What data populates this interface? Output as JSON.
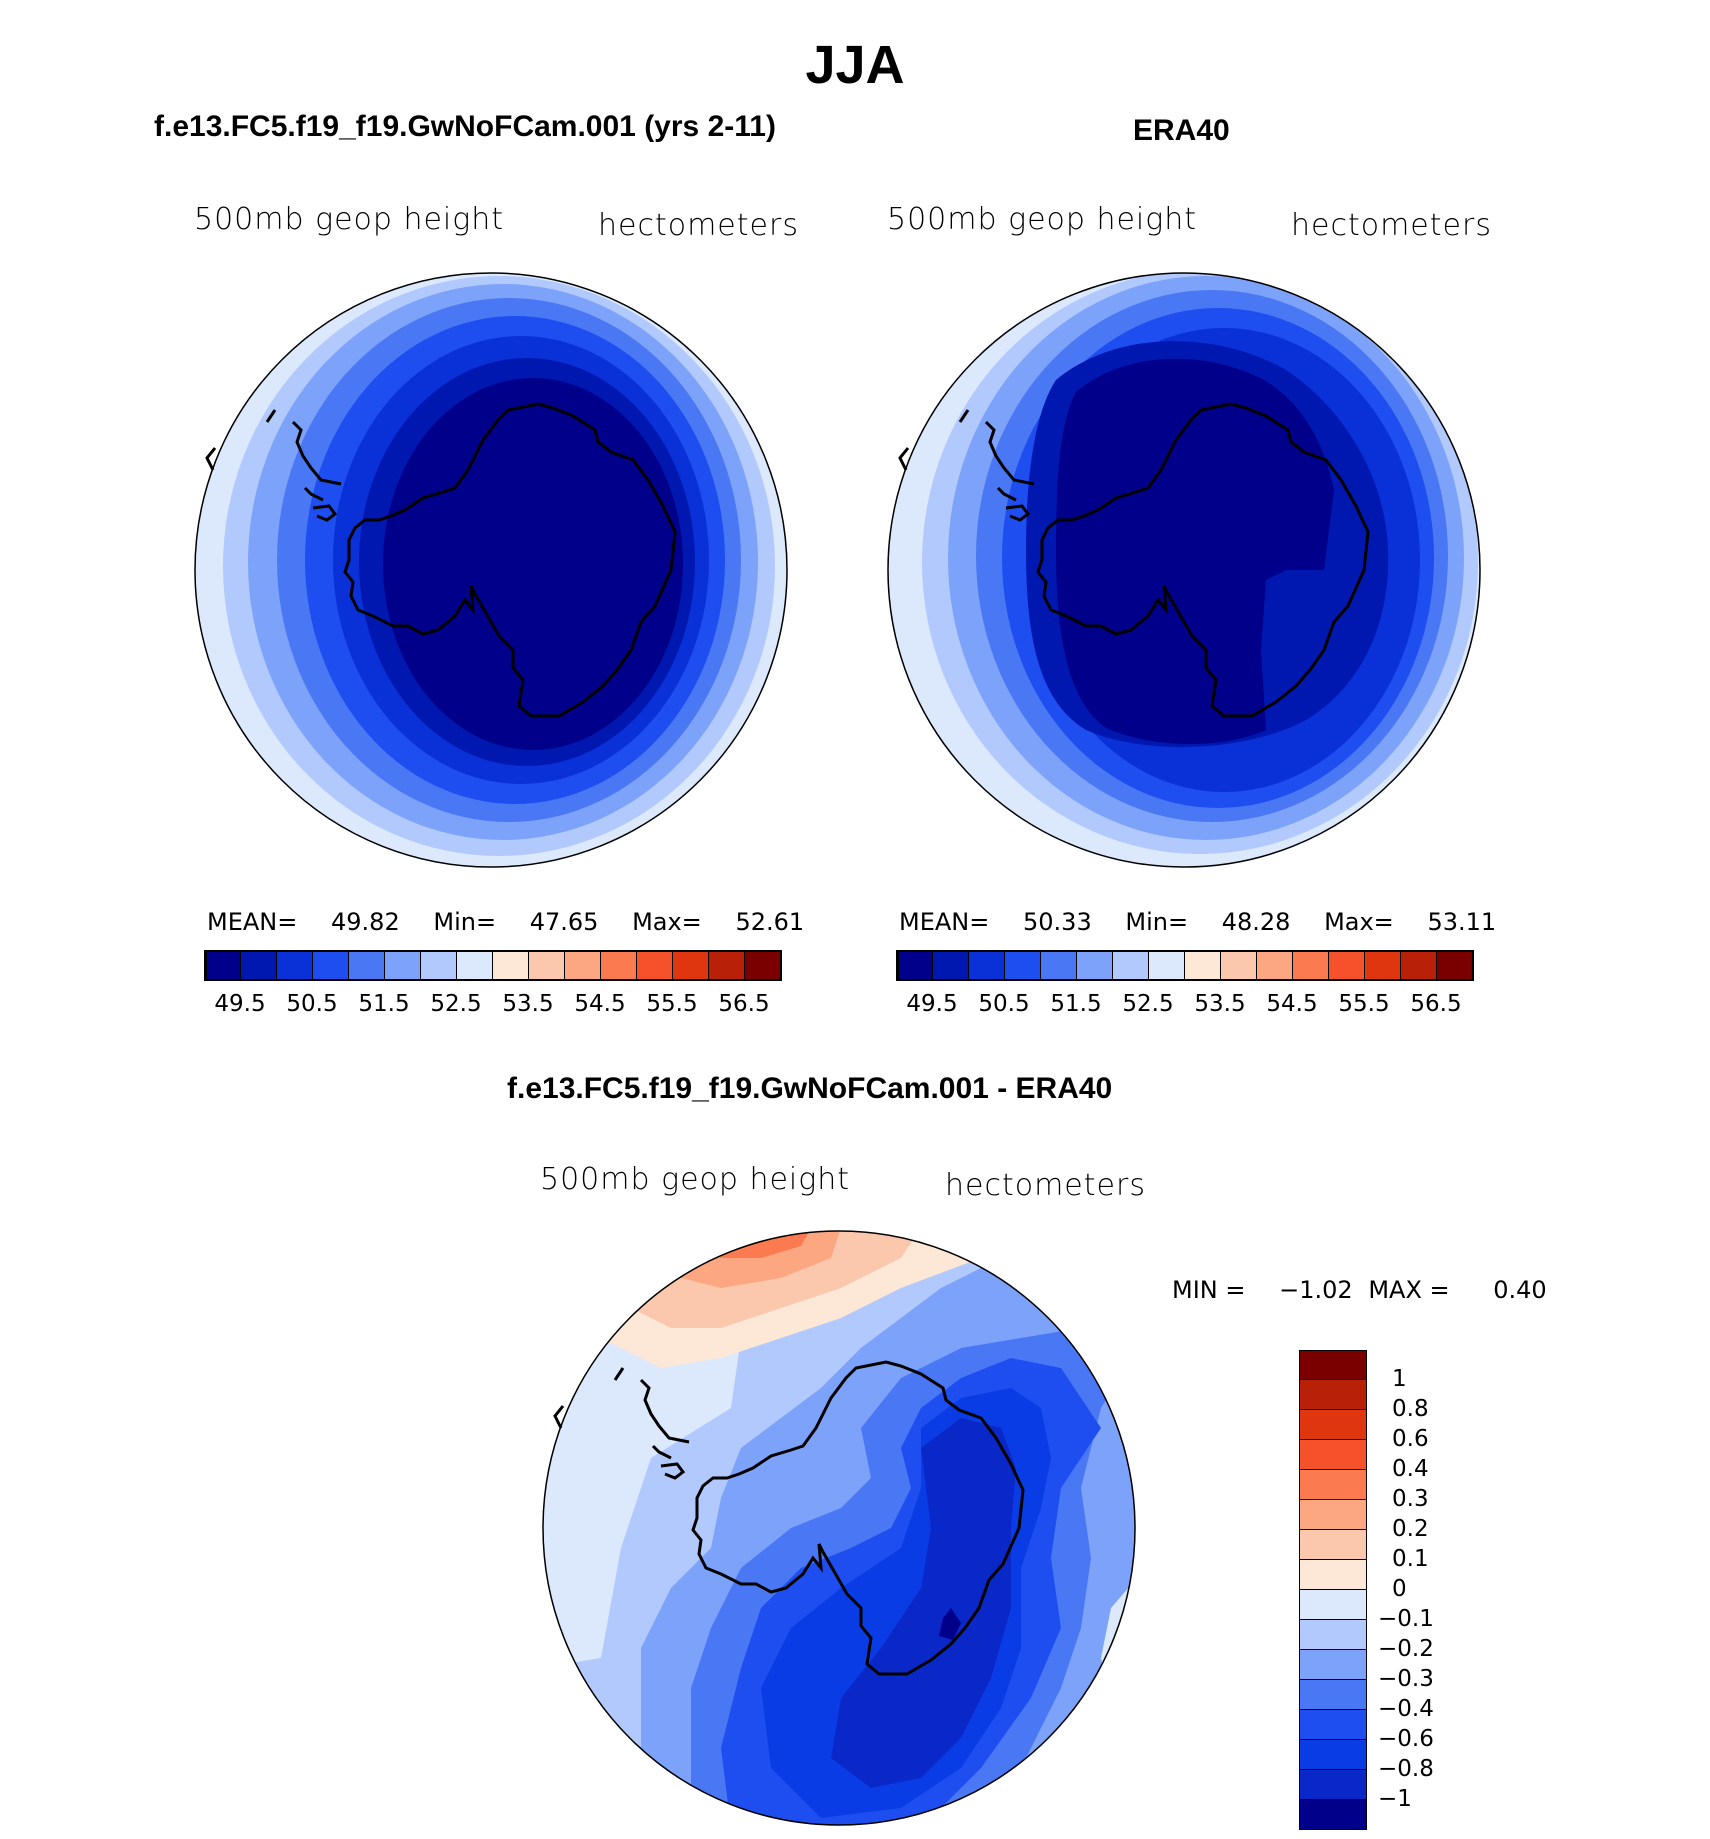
{
  "page_title": "JJA",
  "panels": [
    {
      "id": "model",
      "title": "f.e13.FC5.f19_f19.GwNoFCam.001 (yrs 2-11)",
      "variable_label": "500mb geop height",
      "units_label": "hectometers",
      "stats": {
        "mean_label": "MEAN=",
        "mean": "49.82",
        "min_label": "Min=",
        "min": "47.65",
        "max_label": "Max=",
        "max": "52.61"
      }
    },
    {
      "id": "obs",
      "title": "ERA40",
      "variable_label": "500mb geop height",
      "units_label": "hectometers",
      "stats": {
        "mean_label": "MEAN=",
        "mean": "50.33",
        "min_label": "Min=",
        "min": "48.28",
        "max_label": "Max=",
        "max": "53.11"
      }
    },
    {
      "id": "diff",
      "title": "f.e13.FC5.f19_f19.GwNoFCam.001 - ERA40",
      "variable_label": "500mb geop height",
      "units_label": "hectometers",
      "stats": {
        "min_label": "MIN =",
        "min": "−1.02",
        "max_label": "MAX =",
        "max": "0.40"
      }
    }
  ],
  "colorbar_abs": {
    "colors": [
      "#00008b",
      "#0018b0",
      "#0a30d8",
      "#1e4ef0",
      "#4a78f5",
      "#7da2fa",
      "#b1c9fc",
      "#dce9fd",
      "#fde7d6",
      "#fcc8ad",
      "#fca782",
      "#fb7a50",
      "#f5512a",
      "#e0360f",
      "#b82008",
      "#7a0000"
    ],
    "tick_labels": [
      "49.5",
      "50.5",
      "51.5",
      "52.5",
      "53.5",
      "54.5",
      "55.5",
      "56.5"
    ]
  },
  "colorbar_diff": {
    "colors": [
      "#00008b",
      "#0a28c8",
      "#0a3ce6",
      "#1e4ef0",
      "#4a78f5",
      "#7da2fa",
      "#b1c9fc",
      "#dce9fd",
      "#fde7d6",
      "#fcc8ad",
      "#fca782",
      "#fb7a50",
      "#f5512a",
      "#e0360f",
      "#b82008",
      "#7a0000"
    ],
    "tick_labels": [
      "1",
      "0.8",
      "0.6",
      "0.4",
      "0.3",
      "0.2",
      "0.1",
      "0",
      "−0.1",
      "−0.2",
      "−0.3",
      "−0.4",
      "−0.6",
      "−0.8",
      "−1"
    ]
  }
}
